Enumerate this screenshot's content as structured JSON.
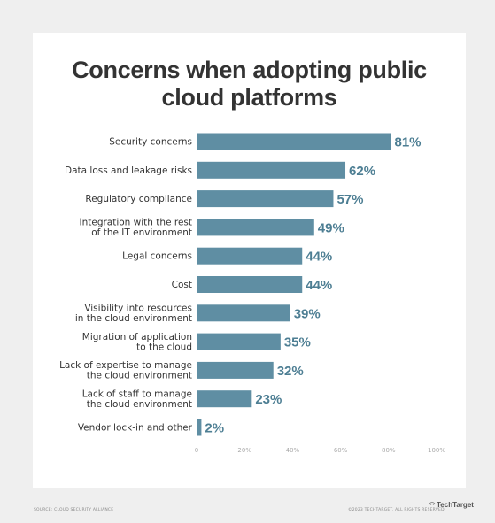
{
  "title_lines": [
    "Concerns when adopting public",
    "cloud platforms"
  ],
  "chart_data": {
    "type": "bar",
    "orientation": "horizontal",
    "title": "Concerns when adopting public cloud platforms",
    "categories": [
      [
        "Security concerns"
      ],
      [
        "Data loss and leakage risks"
      ],
      [
        "Regulatory compliance"
      ],
      [
        "Integration with the rest",
        "of the IT environment"
      ],
      [
        "Legal concerns"
      ],
      [
        "Cost"
      ],
      [
        "Visibility into resources",
        "in the cloud environment"
      ],
      [
        "Migration of application",
        "to the cloud"
      ],
      [
        "Lack of expertise to manage",
        "the cloud environment"
      ],
      [
        "Lack of staff to manage",
        "the cloud environment"
      ],
      [
        "Vendor lock-in and other"
      ]
    ],
    "values": [
      81,
      62,
      57,
      49,
      44,
      44,
      39,
      35,
      32,
      23,
      2
    ],
    "value_labels": [
      "81%",
      "62%",
      "57%",
      "49%",
      "44%",
      "44%",
      "39%",
      "35%",
      "32%",
      "23%",
      "2%"
    ],
    "xlim": [
      0,
      100
    ],
    "x_ticks": [
      0,
      20,
      40,
      60,
      80,
      100
    ],
    "x_tick_labels": [
      "0",
      "20%",
      "40%",
      "60%",
      "80%",
      "100%"
    ],
    "grid": false,
    "bar_color": "#5f8ea3",
    "label_color": "#4d7e93"
  },
  "footer": {
    "source": "SOURCE: CLOUD SECURITY ALLIANCE",
    "copyright": "©2023 TECHTARGET. ALL RIGHTS RESERVED",
    "brand": "TechTarget",
    "brand_icon": "techtarget-logo-icon"
  }
}
